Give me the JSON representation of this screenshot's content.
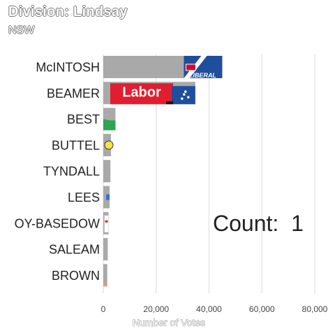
{
  "title": "Division: Lindsay",
  "subtitle": "NSW",
  "count_label": "Count:",
  "count_value": "1",
  "colors": {
    "bar": "#a9a9a9",
    "grid": "#e6e6e6",
    "liberal": "#1f4e9c",
    "labor": "#e01e2f",
    "greens": "#2ea44f",
    "ohana": "#f2e24a"
  },
  "chart_data": {
    "type": "bar",
    "orientation": "horizontal",
    "title": "Division: Lindsay",
    "subtitle": "NSW",
    "xlabel": "Number of Votes",
    "ylabel": "",
    "xlim": [
      0,
      80000
    ],
    "xticks": [
      0,
      20000,
      40000,
      60000,
      80000
    ],
    "xtick_labels": [
      "0",
      "20,000",
      "40,000",
      "60,000",
      "80,000"
    ],
    "categories": [
      "McINTOSH",
      "BEAMER",
      "BEST",
      "BUTTEL",
      "TYNDALL",
      "LEES",
      "GODDARD-BASEDOW",
      "SALEAM",
      "BROWN"
    ],
    "category_labels": [
      "McINTOSH",
      "BEAMER",
      "BEST",
      "BUTTEL",
      "TYNDALL",
      "LEES",
      "OY-BASEDOW",
      "SALEAM",
      "BROWN"
    ],
    "values": [
      45000,
      34800,
      4600,
      2900,
      2700,
      2400,
      2000,
      1700,
      1500
    ],
    "party_logos": [
      "liberal-logo",
      "labor-logo",
      "greens-logo",
      "party-logo",
      "",
      "party-logo",
      "party-logo",
      "",
      ""
    ],
    "grid": true
  }
}
